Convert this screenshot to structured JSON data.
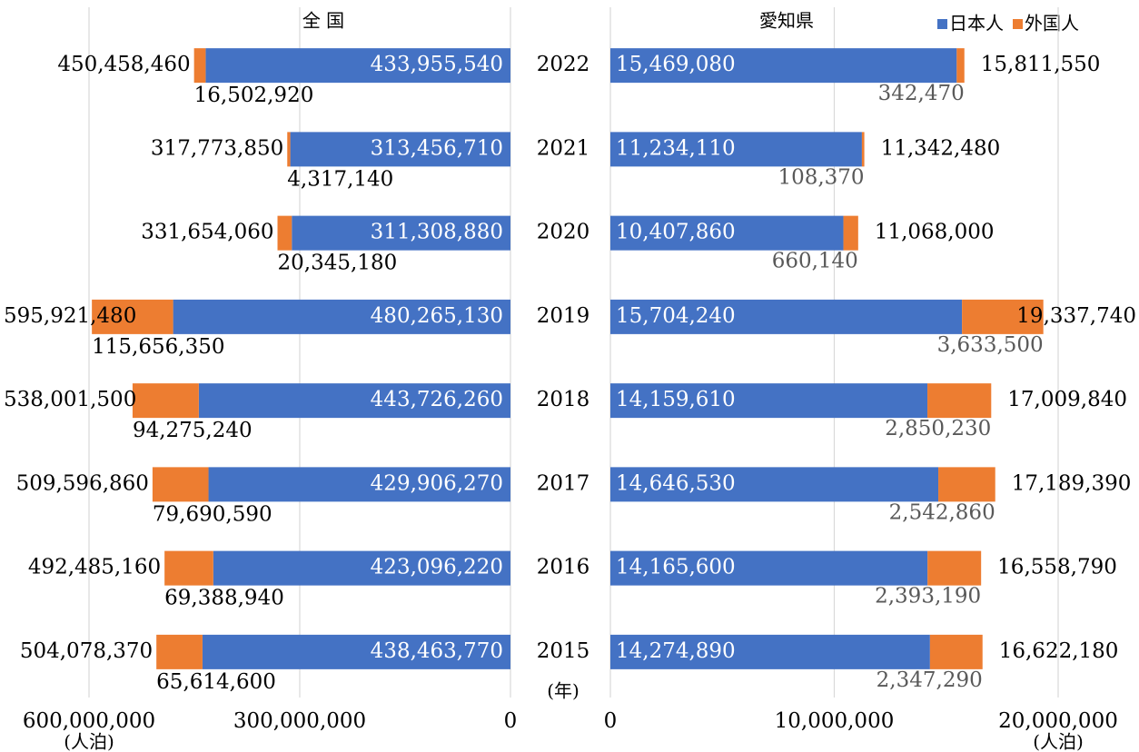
{
  "chart_data": {
    "type": "bar",
    "stacked": true,
    "categories": [
      "2022",
      "2021",
      "2020",
      "2019",
      "2018",
      "2017",
      "2016",
      "2015"
    ],
    "y_label": "(年)",
    "legend": [
      {
        "name": "日本人",
        "color": "#4472c4"
      },
      {
        "name": "外国人",
        "color": "#ed7d31"
      }
    ],
    "panels": [
      {
        "title": "全 国",
        "xlim": [
          0,
          600000000
        ],
        "reversed": true,
        "xticks": [
          {
            "value": 600000000,
            "label": "600,000,000"
          },
          {
            "value": 300000000,
            "label": "300,000,000"
          },
          0
        ],
        "x_label": "(人泊)",
        "grid": true,
        "series": [
          {
            "values": [
              433955540,
              313456710,
              311308880,
              480265130,
              443726260,
              429906270,
              423096220,
              438463770
            ],
            "value_labels": [
              "433,955,540",
              "313,456,710",
              "311,308,880",
              "480,265,130",
              "443,726,260",
              "429,906,270",
              "423,096,220",
              "438,463,770"
            ]
          },
          {
            "values": [
              16502920,
              4317140,
              20345180,
              115656350,
              94275240,
              79690590,
              69388940,
              65614600
            ],
            "value_labels": [
              "16,502,920",
              "4,317,140",
              "20,345,180",
              "115,656,350",
              "94,275,240",
              "79,690,590",
              "69,388,940",
              "65,614,600"
            ]
          }
        ],
        "totals": [
          450458460,
          317773850,
          331654060,
          595921480,
          538001500,
          509596860,
          492485160,
          504078370
        ],
        "total_labels": [
          "450,458,460",
          "317,773,850",
          "331,654,060",
          "595,921,480",
          "538,001,500",
          "509,596,860",
          "492,485,160",
          "504,078,370"
        ]
      },
      {
        "title": "愛知県",
        "xlim": [
          0,
          20000000
        ],
        "reversed": false,
        "xticks": [
          0,
          {
            "value": 10000000,
            "label": "10,000,000"
          },
          {
            "value": 20000000,
            "label": "20,000,000"
          }
        ],
        "x_label": "(人泊)",
        "grid": true,
        "series": [
          {
            "values": [
              15469080,
              11234110,
              10407860,
              15704240,
              14159610,
              14646530,
              14165600,
              14274890
            ],
            "value_labels": [
              "15,469,080",
              "11,234,110",
              "10,407,860",
              "15,704,240",
              "14,159,610",
              "14,646,530",
              "14,165,600",
              "14,274,890"
            ]
          },
          {
            "values": [
              342470,
              108370,
              660140,
              3633500,
              2850230,
              2542860,
              2393190,
              2347290
            ],
            "value_labels": [
              "342,470",
              "108,370",
              "660,140",
              "3,633,500",
              "2,850,230",
              "2,542,860",
              "2,393,190",
              "2,347,290"
            ]
          }
        ],
        "totals": [
          15811550,
          11342480,
          11068000,
          19337740,
          17009840,
          17189390,
          16558790,
          16622180
        ],
        "total_labels": [
          "15,811,550",
          "11,342,480",
          "11,068,000",
          "19,337,740",
          "17,009,840",
          "17,189,390",
          "16,558,790",
          "16,622,180"
        ]
      }
    ]
  }
}
